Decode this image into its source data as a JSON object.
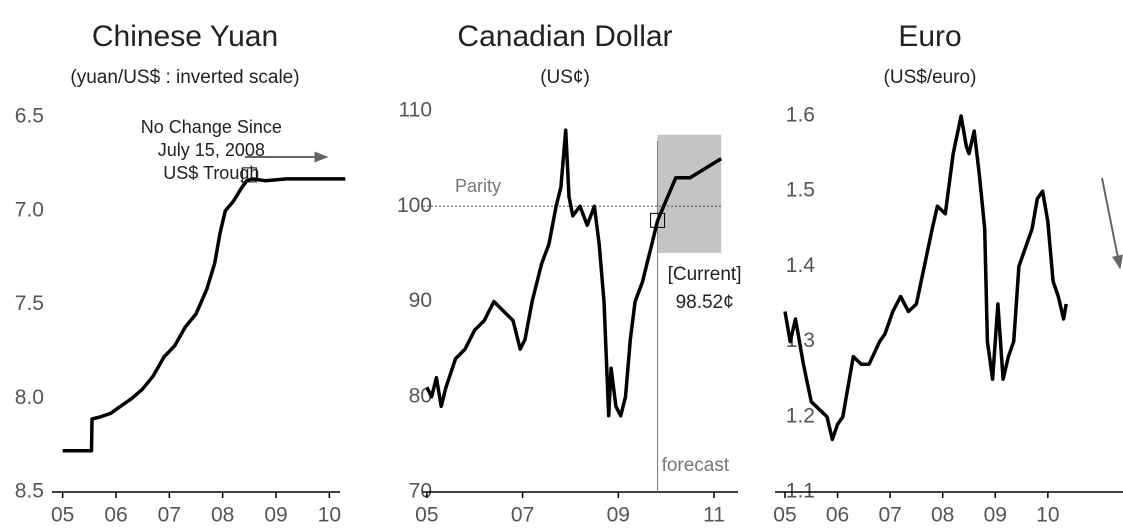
{
  "chart_data": [
    {
      "type": "line",
      "title": "Chinese Yuan",
      "subtitle": "(yuan/US$ : inverted scale)",
      "xlim": [
        4.8,
        10.2
      ],
      "xticks": [
        {
          "value": 5,
          "label": "05"
        },
        {
          "value": 6,
          "label": "06"
        },
        {
          "value": 7,
          "label": "07"
        },
        {
          "value": 8,
          "label": "08"
        },
        {
          "value": 9,
          "label": "09"
        },
        {
          "value": 10,
          "label": "10"
        }
      ],
      "ylim": [
        6.5,
        8.5
      ],
      "inverted_y": true,
      "yticks": [
        6.5,
        {
          "value": 7,
          "label": "7.0"
        },
        7.5,
        {
          "value": 8,
          "label": "8.0"
        },
        8.5
      ],
      "series": [
        {
          "color": "#000000",
          "x": [
            5.0,
            5.54,
            5.55,
            5.7,
            5.9,
            6.1,
            6.3,
            6.5,
            6.7,
            6.9,
            7.1,
            7.3,
            7.5,
            7.7,
            7.85,
            7.95,
            8.05,
            8.2,
            8.35,
            8.45,
            8.55,
            8.8,
            9.2,
            9.6,
            10.0,
            10.3
          ],
          "values": [
            8.28,
            8.28,
            8.11,
            8.1,
            8.08,
            8.04,
            8.0,
            7.95,
            7.88,
            7.78,
            7.72,
            7.62,
            7.55,
            7.42,
            7.28,
            7.12,
            7.0,
            6.95,
            6.88,
            6.84,
            6.83,
            6.84,
            6.83,
            6.83,
            6.83,
            6.83
          ]
        }
      ],
      "annotation": [
        "No Change Since",
        "July 15, 2008",
        "US$ Trough"
      ],
      "marker": {
        "x": 8.5,
        "value": 6.83
      }
    },
    {
      "type": "line",
      "title": "Canadian Dollar",
      "subtitle": "(US¢)",
      "xlim": [
        4.92,
        11.5
      ],
      "xticks": [
        {
          "value": 5,
          "label": "05"
        },
        {
          "value": 7,
          "label": "07"
        },
        {
          "value": 9,
          "label": "09"
        },
        {
          "value": 11,
          "label": "11"
        }
      ],
      "ylim": [
        70,
        110
      ],
      "yticks": [
        70,
        80,
        90,
        100,
        110
      ],
      "series": [
        {
          "color": "#000000",
          "x": [
            5.0,
            5.1,
            5.2,
            5.3,
            5.4,
            5.6,
            5.8,
            6.0,
            6.2,
            6.4,
            6.6,
            6.8,
            6.95,
            7.05,
            7.2,
            7.4,
            7.55,
            7.7,
            7.8,
            7.9,
            7.97,
            8.05,
            8.2,
            8.35,
            8.5,
            8.6,
            8.7,
            8.8,
            8.85,
            8.95,
            9.05,
            9.15,
            9.25,
            9.35,
            9.5,
            9.6,
            9.7,
            9.82
          ],
          "values": [
            81,
            80,
            82,
            79,
            81,
            84,
            85,
            87,
            88,
            90,
            89,
            88,
            85,
            86,
            90,
            94,
            96,
            100,
            102,
            108,
            101,
            99,
            100,
            98,
            100,
            96,
            90,
            78,
            83,
            79,
            78,
            80,
            86,
            90,
            92,
            94,
            96,
            98.5
          ]
        },
        {
          "color": "#000000",
          "x": [
            9.82,
            10.2,
            10.5,
            11.15
          ],
          "values": [
            98.5,
            103,
            103,
            105
          ]
        }
      ],
      "reference_line": {
        "value": 100,
        "label": "Parity"
      },
      "forecast_start": 9.82,
      "forecast_label": "forecast",
      "forecast_band": {
        "x": [
          9.82,
          11.15
        ],
        "y": [
          95.1,
          107.5
        ]
      },
      "current_label": "[Current]",
      "current": {
        "x": 9.82,
        "value": 98.52,
        "label": "98.52¢"
      }
    },
    {
      "type": "line",
      "title": "Euro",
      "subtitle": "(US$/euro)",
      "xlim": [
        4.81,
        11.43
      ],
      "xticks": [
        {
          "value": 5,
          "label": "05"
        },
        {
          "value": 6,
          "label": "06"
        },
        {
          "value": 7,
          "label": "07"
        },
        {
          "value": 8,
          "label": "08"
        },
        {
          "value": 9,
          "label": "09"
        },
        {
          "value": 10,
          "label": "10"
        }
      ],
      "ylim": [
        1.1,
        1.6
      ],
      "yticks": [
        1.1,
        1.2,
        1.3,
        1.4,
        1.5,
        1.6
      ],
      "series": [
        {
          "color": "#000000",
          "x": [
            5.0,
            5.1,
            5.2,
            5.35,
            5.5,
            5.65,
            5.8,
            5.9,
            6.0,
            6.1,
            6.3,
            6.45,
            6.6,
            6.8,
            6.9,
            7.05,
            7.2,
            7.35,
            7.5,
            7.65,
            7.8,
            7.9,
            8.05,
            8.2,
            8.35,
            8.45,
            8.5,
            8.6,
            8.7,
            8.8,
            8.85,
            8.95,
            9.05,
            9.15,
            9.25,
            9.35,
            9.45,
            9.6,
            9.7,
            9.8,
            9.9,
            10.0,
            10.1,
            10.2,
            10.3,
            10.35
          ],
          "values": [
            1.34,
            1.3,
            1.33,
            1.27,
            1.22,
            1.21,
            1.2,
            1.17,
            1.19,
            1.2,
            1.28,
            1.27,
            1.27,
            1.3,
            1.31,
            1.34,
            1.36,
            1.34,
            1.35,
            1.4,
            1.45,
            1.48,
            1.47,
            1.55,
            1.6,
            1.56,
            1.55,
            1.58,
            1.52,
            1.45,
            1.3,
            1.25,
            1.35,
            1.25,
            1.28,
            1.3,
            1.4,
            1.43,
            1.45,
            1.49,
            1.5,
            1.46,
            1.38,
            1.36,
            1.33,
            1.35
          ]
        }
      ]
    }
  ]
}
